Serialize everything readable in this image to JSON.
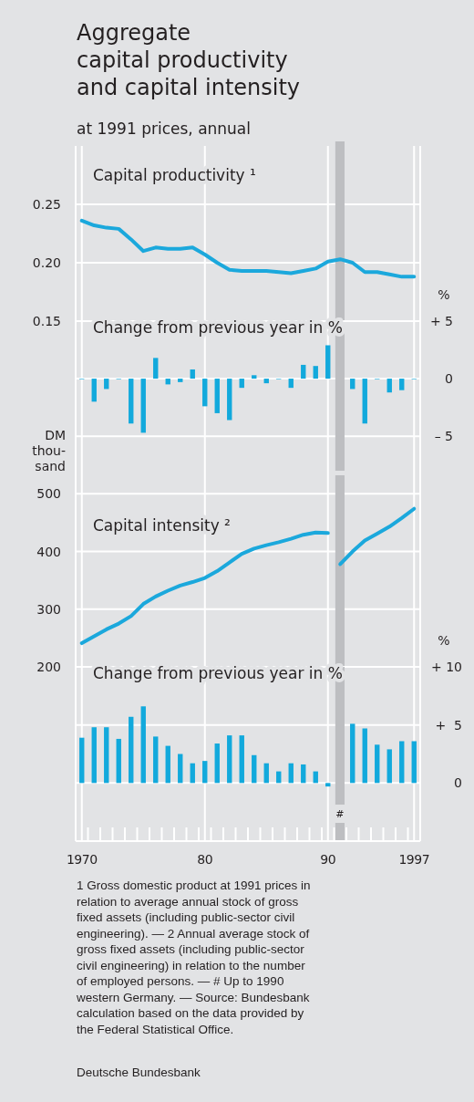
{
  "chart_data": [
    {
      "type": "line",
      "title": "Aggregate\ncapital productivity\nand capital intensity",
      "subtitle": "at 1991 prices, annual",
      "annotations": [
        "Capital productivity ¹"
      ],
      "x": [
        1970,
        1971,
        1972,
        1973,
        1974,
        1975,
        1976,
        1977,
        1978,
        1979,
        1980,
        1981,
        1982,
        1983,
        1984,
        1985,
        1986,
        1987,
        1988,
        1989,
        1990,
        1991,
        1992,
        1993,
        1994,
        1995,
        1996,
        1997
      ],
      "series": [
        {
          "color": "#1ba8dc",
          "values": [
            0.236,
            0.232,
            0.23,
            0.229,
            0.22,
            0.21,
            0.213,
            0.212,
            0.212,
            0.213,
            0.207,
            0.2,
            0.194,
            0.193,
            0.193,
            0.193,
            0.192,
            0.191,
            0.193,
            0.195,
            0.201,
            0.203,
            0.2,
            0.192,
            0.192,
            0.19,
            0.188,
            0.188
          ]
        }
      ],
      "xlim": [
        1969.5,
        1997.5
      ],
      "xticks": [
        1970,
        1980,
        1990,
        1997
      ],
      "ylim": [
        0.15,
        0.3
      ],
      "yticks": [
        0.15,
        {
          "value": 0.2,
          "label": "0.20"
        },
        0.25
      ],
      "grid": true,
      "tick_labels": "y",
      "bands": [
        {
          "axis": "x",
          "from": 1990.6,
          "to": 1991.35,
          "color": "#bdbec1"
        }
      ]
    },
    {
      "type": "bar",
      "title": "Change from previous year in %",
      "y2label": "%",
      "x": [
        1970,
        1971,
        1972,
        1973,
        1974,
        1975,
        1976,
        1977,
        1978,
        1979,
        1980,
        1981,
        1982,
        1983,
        1984,
        1985,
        1986,
        1987,
        1988,
        1989,
        1990,
        1991,
        1992,
        1993,
        1994,
        1995,
        1996,
        1997
      ],
      "series": [
        {
          "color": "#12a9dc",
          "axis": "y2",
          "values": [
            0,
            -2.0,
            -0.9,
            0,
            -3.9,
            -4.7,
            1.8,
            -0.5,
            -0.3,
            0.8,
            -2.4,
            -3.0,
            -3.6,
            -0.8,
            0.3,
            -0.4,
            0,
            -0.8,
            1.2,
            1.1,
            2.9,
            null,
            -0.9,
            -3.9,
            0,
            -1.2,
            -1.0,
            0
          ]
        }
      ],
      "xlim": [
        1969.5,
        1997.5
      ],
      "xticks": [
        1970,
        1980,
        1990,
        1997
      ],
      "y2lim": [
        -8,
        5
      ],
      "y2ticks": [
        {
          "value": 5,
          "label": "+ 5"
        },
        0,
        {
          "value": -5,
          "label": "– 5"
        }
      ],
      "grid": true,
      "tick_labels": "y",
      "bands": [
        {
          "axis": "x",
          "from": 1990.6,
          "to": 1991.35,
          "color": "#bdbec1"
        }
      ]
    },
    {
      "type": "line",
      "title": "Capital intensity ²",
      "ylabel": "DM thou- sand",
      "series": [
        {
          "color": "#1ba8dc",
          "x": [
            1970,
            1971,
            1972,
            1973,
            1974,
            1975,
            1976,
            1977,
            1978,
            1979,
            1980,
            1981,
            1982,
            1983,
            1984,
            1985,
            1986,
            1987,
            1988,
            1989,
            1990
          ],
          "values": [
            241,
            253,
            265,
            275,
            288,
            309,
            322,
            332,
            341,
            347,
            354,
            366,
            381,
            396,
            405,
            411,
            416,
            422,
            429,
            433,
            432
          ]
        },
        {
          "color": "#1ba8dc",
          "x": [
            1991,
            1992,
            1993,
            1994,
            1995,
            1996,
            1997
          ],
          "values": [
            378,
            400,
            419,
            431,
            443,
            458,
            474
          ]
        }
      ],
      "xlim": [
        1969.5,
        1997.5
      ],
      "xticks": [
        1970,
        1980,
        1990,
        1997
      ],
      "ylim": [
        200,
        540
      ],
      "yticks": [
        200,
        300,
        400,
        500
      ],
      "grid": true,
      "tick_labels": "y",
      "bands": [
        {
          "axis": "x",
          "from": 1990.6,
          "to": 1991.35,
          "color": "#bdbec1"
        }
      ]
    },
    {
      "type": "bar",
      "title": "Change from previous year in %",
      "y2label": "%",
      "x": [
        1970,
        1971,
        1972,
        1973,
        1974,
        1975,
        1976,
        1977,
        1978,
        1979,
        1980,
        1981,
        1982,
        1983,
        1984,
        1985,
        1986,
        1987,
        1988,
        1989,
        1990,
        1991,
        1992,
        1993,
        1994,
        1995,
        1996,
        1997
      ],
      "series": [
        {
          "color": "#12a9dc",
          "axis": "y2",
          "values": [
            3.9,
            4.8,
            4.8,
            3.8,
            5.7,
            6.6,
            4.0,
            3.2,
            2.5,
            1.7,
            1.9,
            3.4,
            4.1,
            4.1,
            2.4,
            1.7,
            1.0,
            1.7,
            1.6,
            1.0,
            -0.3,
            null,
            5.1,
            4.7,
            3.3,
            2.9,
            3.6,
            3.6
          ]
        }
      ],
      "xlim": [
        1969.5,
        1997.5
      ],
      "xticks": [
        {
          "value": 1970,
          "label": "1970"
        },
        {
          "value": 1980,
          "label": "80"
        },
        {
          "value": 1990,
          "label": "90"
        },
        {
          "value": 1997,
          "label": "1997"
        }
      ],
      "y2lim": [
        -5,
        10
      ],
      "y2ticks": [
        {
          "value": 10,
          "label": "+ 10"
        },
        {
          "value": 5,
          "label": "+  5"
        },
        0
      ],
      "grid": true,
      "bands": [
        {
          "axis": "x",
          "from": 1990.6,
          "to": 1991.35,
          "color": "#bdbec1",
          "label": "#"
        }
      ],
      "annotations": [
        "1 Gross domestic product at 1991 prices in\nrelation to average annual stock of gross\nfixed assets (including public-sector civil\nengineering). — 2 Annual average stock of\ngross fixed assets (including public-sector\ncivil engineering) in relation to the number\nof employed persons. — # Up to 1990\nwestern Germany. — Source: Bundesbank\ncalculation based on the data provided by\nthe Federal Statistical Office.",
        "Deutsche Bundesbank"
      ]
    }
  ]
}
